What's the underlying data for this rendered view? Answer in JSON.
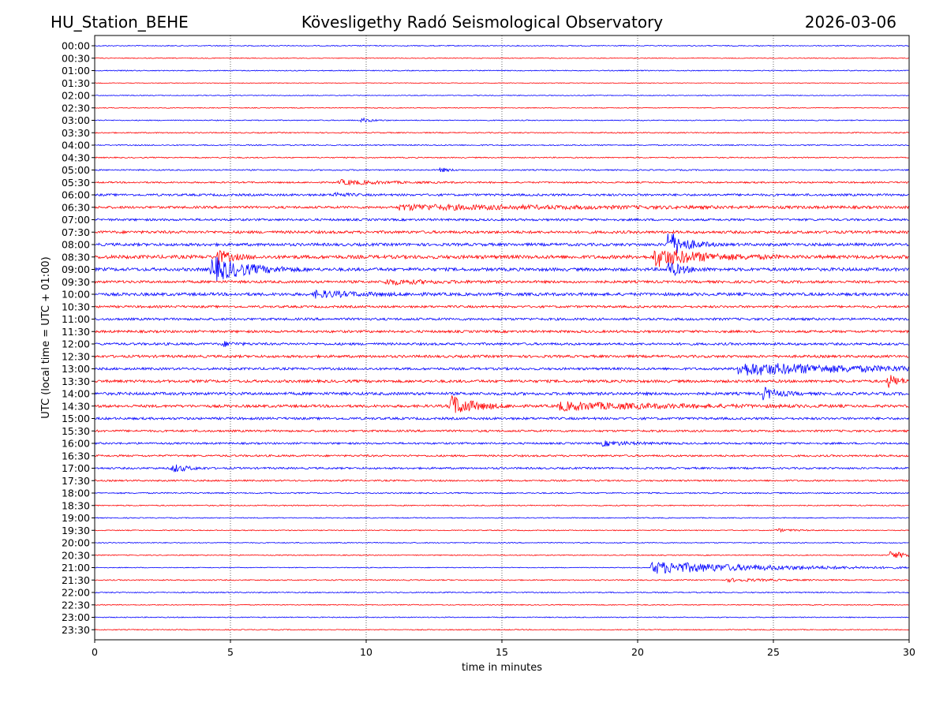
{
  "header": {
    "station": "HU_Station_BEHE",
    "observatory": "Kövesligethy Radó Seismological Observatory",
    "date": "2026-03-06"
  },
  "chart_data": {
    "type": "helicorder",
    "title": "Kövesligethy Radó Seismological Observatory",
    "xlabel": "time in minutes",
    "ylabel": "UTC (local time = UTC + 01:00)",
    "xlim": [
      0,
      30
    ],
    "x_ticks": [
      0,
      5,
      10,
      15,
      20,
      25,
      30
    ],
    "grid_x": [
      5,
      10,
      15,
      20,
      25
    ],
    "trace_colors": [
      "#0000ff",
      "#ff0000"
    ],
    "noise_amplitude": [
      0.6,
      0.5,
      0.6,
      0.4,
      0.5,
      0.5,
      0.6,
      0.7,
      0.7,
      0.7,
      0.8,
      1.0,
      1.4,
      1.5,
      1.4,
      1.7,
      1.8,
      2.2,
      2.0,
      1.6,
      1.9,
      1.4,
      1.5,
      1.5,
      1.5,
      1.6,
      1.5,
      1.7,
      1.8,
      1.7,
      1.5,
      1.3,
      1.2,
      1.2,
      1.2,
      1.0,
      0.8,
      0.7,
      0.6,
      0.6,
      0.6,
      0.6,
      0.5,
      0.7,
      0.7,
      0.6,
      0.6,
      0.6
    ],
    "rows": [
      {
        "label": "00:00",
        "events": []
      },
      {
        "label": "00:30",
        "events": []
      },
      {
        "label": "01:00",
        "events": []
      },
      {
        "label": "01:30",
        "events": []
      },
      {
        "label": "02:00",
        "events": []
      },
      {
        "label": "02:30",
        "events": []
      },
      {
        "label": "03:00",
        "events": [
          {
            "t": 9.8,
            "amp": 3,
            "dur": 0.4
          }
        ]
      },
      {
        "label": "03:30",
        "events": []
      },
      {
        "label": "04:00",
        "events": []
      },
      {
        "label": "04:30",
        "events": []
      },
      {
        "label": "05:00",
        "events": [
          {
            "t": 12.7,
            "amp": 3,
            "dur": 0.3
          }
        ]
      },
      {
        "label": "05:30",
        "events": [
          {
            "t": 9.0,
            "amp": 3,
            "dur": 1.5
          }
        ]
      },
      {
        "label": "06:00",
        "events": [
          {
            "t": 8.8,
            "amp": 3,
            "dur": 0.4
          }
        ]
      },
      {
        "label": "06:30",
        "events": [
          {
            "t": 11.2,
            "amp": 3,
            "dur": 7.0
          }
        ]
      },
      {
        "label": "07:00",
        "events": []
      },
      {
        "label": "07:30",
        "events": []
      },
      {
        "label": "08:00",
        "events": [
          {
            "t": 21.1,
            "amp": 18,
            "dur": 0.6
          }
        ]
      },
      {
        "label": "08:30",
        "events": [
          {
            "t": 20.6,
            "amp": 12,
            "dur": 1.6
          },
          {
            "t": 4.5,
            "amp": 9,
            "dur": 0.5
          }
        ]
      },
      {
        "label": "09:00",
        "events": [
          {
            "t": 4.3,
            "amp": 16,
            "dur": 1.2
          },
          {
            "t": 21.1,
            "amp": 10,
            "dur": 0.5
          }
        ]
      },
      {
        "label": "09:30",
        "events": [
          {
            "t": 10.7,
            "amp": 3,
            "dur": 1.5
          }
        ]
      },
      {
        "label": "10:00",
        "events": [
          {
            "t": 8.1,
            "amp": 4,
            "dur": 1.5
          }
        ]
      },
      {
        "label": "10:30",
        "events": []
      },
      {
        "label": "11:00",
        "events": []
      },
      {
        "label": "11:30",
        "events": []
      },
      {
        "label": "12:00",
        "events": [
          {
            "t": 4.7,
            "amp": 3,
            "dur": 0.4
          }
        ]
      },
      {
        "label": "12:30",
        "events": []
      },
      {
        "label": "13:00",
        "events": [
          {
            "t": 23.7,
            "amp": 8,
            "dur": 4.5
          }
        ]
      },
      {
        "label": "13:30",
        "events": [
          {
            "t": 29.2,
            "amp": 9,
            "dur": 0.4
          }
        ]
      },
      {
        "label": "14:00",
        "events": [
          {
            "t": 24.6,
            "amp": 8,
            "dur": 0.5
          }
        ]
      },
      {
        "label": "14:30",
        "events": [
          {
            "t": 13.1,
            "amp": 14,
            "dur": 0.8
          },
          {
            "t": 17.1,
            "amp": 5,
            "dur": 3.5
          }
        ]
      },
      {
        "label": "15:00",
        "events": []
      },
      {
        "label": "15:30",
        "events": []
      },
      {
        "label": "16:00",
        "events": [
          {
            "t": 18.7,
            "amp": 3,
            "dur": 1.0
          }
        ]
      },
      {
        "label": "16:30",
        "events": []
      },
      {
        "label": "17:00",
        "events": [
          {
            "t": 2.8,
            "amp": 6,
            "dur": 0.5
          }
        ]
      },
      {
        "label": "17:30",
        "events": []
      },
      {
        "label": "18:00",
        "events": []
      },
      {
        "label": "18:30",
        "events": []
      },
      {
        "label": "19:00",
        "events": []
      },
      {
        "label": "19:30",
        "events": [
          {
            "t": 25.1,
            "amp": 2,
            "dur": 0.6
          }
        ]
      },
      {
        "label": "20:00",
        "events": []
      },
      {
        "label": "20:30",
        "events": [
          {
            "t": 29.3,
            "amp": 5,
            "dur": 0.7
          }
        ]
      },
      {
        "label": "21:00",
        "events": [
          {
            "t": 20.5,
            "amp": 8,
            "dur": 4.0
          }
        ]
      },
      {
        "label": "21:30",
        "events": [
          {
            "t": 23.3,
            "amp": 2,
            "dur": 1.5
          }
        ]
      },
      {
        "label": "22:00",
        "events": []
      },
      {
        "label": "22:30",
        "events": []
      },
      {
        "label": "23:00",
        "events": []
      },
      {
        "label": "23:30",
        "events": []
      }
    ]
  }
}
